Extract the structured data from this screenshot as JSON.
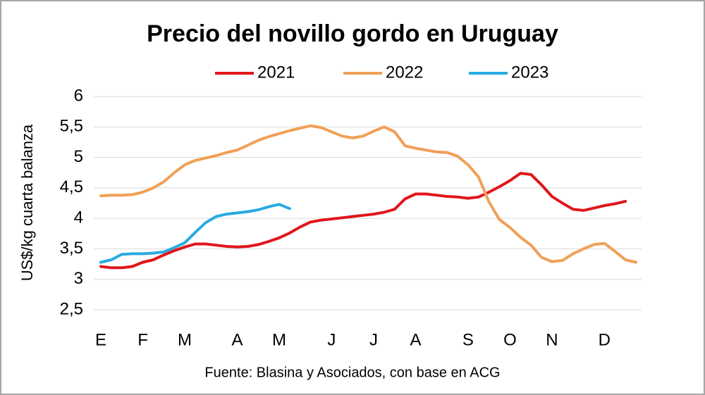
{
  "chart_data": {
    "type": "line",
    "title": "Precio del novillo gordo en Uruguay",
    "y_label": "US$/kg cuarta balanza",
    "source": "Fuente: Blasina y Asociados, con base en ACG",
    "categories": [
      "E",
      null,
      null,
      null,
      "F",
      null,
      null,
      null,
      "M",
      null,
      null,
      null,
      null,
      "A",
      null,
      null,
      null,
      "M",
      null,
      null,
      null,
      null,
      "J",
      null,
      null,
      null,
      "J",
      null,
      null,
      null,
      "A",
      null,
      null,
      null,
      null,
      "S",
      null,
      null,
      null,
      "O",
      null,
      null,
      null,
      "N",
      null,
      null,
      null,
      null,
      "D",
      null,
      null,
      null
    ],
    "series": [
      {
        "name": "2021",
        "color": "#e0161b",
        "values": [
          3.21,
          3.19,
          3.19,
          3.21,
          3.28,
          3.32,
          3.4,
          3.47,
          3.53,
          3.58,
          3.58,
          3.56,
          3.54,
          3.53,
          3.54,
          3.57,
          3.62,
          3.68,
          3.76,
          3.86,
          3.94,
          3.97,
          3.99,
          4.01,
          4.03,
          4.05,
          4.07,
          4.1,
          4.15,
          4.32,
          4.4,
          4.4,
          4.38,
          4.36,
          4.35,
          4.33,
          4.35,
          4.43,
          4.52,
          4.62,
          4.74,
          4.72,
          4.55,
          4.36,
          4.25,
          4.15,
          4.13,
          4.17,
          4.21,
          4.24,
          4.28,
          null
        ]
      },
      {
        "name": "2022",
        "color": "#f0a057",
        "values": [
          4.37,
          4.38,
          4.38,
          4.39,
          4.43,
          4.5,
          4.6,
          4.75,
          4.88,
          4.95,
          4.99,
          5.03,
          5.08,
          5.12,
          5.2,
          5.28,
          5.34,
          5.39,
          5.44,
          5.48,
          5.52,
          5.49,
          5.42,
          5.35,
          5.32,
          5.35,
          5.43,
          5.5,
          5.42,
          5.19,
          5.15,
          5.12,
          5.09,
          5.08,
          5.02,
          4.88,
          4.68,
          4.27,
          3.98,
          3.85,
          3.69,
          3.56,
          3.36,
          3.29,
          3.31,
          3.42,
          3.5,
          3.57,
          3.59,
          3.46,
          3.32,
          3.28
        ]
      },
      {
        "name": "2023",
        "color": "#29abe2",
        "values": [
          3.28,
          3.32,
          3.41,
          3.42,
          3.42,
          3.43,
          3.45,
          3.52,
          3.6,
          3.77,
          3.93,
          4.03,
          4.07,
          4.09,
          4.11,
          4.14,
          4.19,
          4.23,
          4.16,
          null,
          null,
          null,
          null,
          null,
          null,
          null,
          null,
          null,
          null,
          null,
          null,
          null,
          null,
          null,
          null,
          null,
          null,
          null,
          null,
          null,
          null,
          null,
          null,
          null,
          null,
          null,
          null,
          null,
          null,
          null,
          null,
          null
        ]
      }
    ],
    "ylim": [
      2.5,
      6
    ],
    "yticks": [
      {
        "value": 2.5,
        "label": "2,5"
      },
      3,
      {
        "value": 3.5,
        "label": "3,5"
      },
      4,
      {
        "value": 4.5,
        "label": "4,5"
      },
      5,
      {
        "value": 5.5,
        "label": "5,5"
      },
      6
    ],
    "grid": true
  }
}
